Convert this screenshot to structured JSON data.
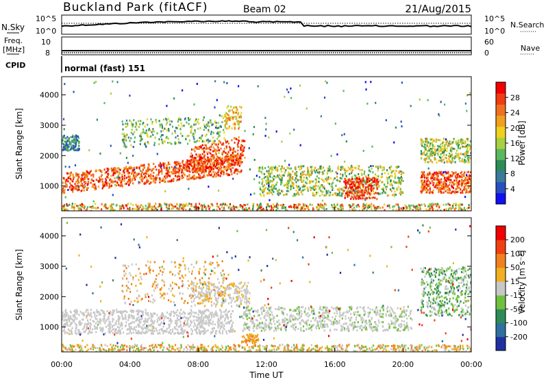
{
  "header": {
    "station": "Buckland Park (fitACF)",
    "beam": "Beam 02",
    "date": "21/Aug/2015"
  },
  "summary": {
    "nsky_label": "N.Sky",
    "nsky_ticks": [
      "10^5",
      "10^0"
    ],
    "nsearch_label": "N.Search",
    "freq_label_1": "Freq.",
    "freq_label_2": "[MHz]",
    "freq_ticks": [
      "10",
      "8"
    ],
    "nave_label": "Nave",
    "nave_ticks": [
      "60",
      "0"
    ],
    "cpid_label": "CPID",
    "cpid_value": "normal (fast) 151"
  },
  "chart_data": [
    {
      "type": "heatmap",
      "quantity": "Power",
      "ylabel": "Slant Range [km]",
      "yticks": [
        1000,
        2000,
        3000,
        4000
      ],
      "ylim": [
        180,
        4600
      ],
      "xlim_hours": [
        0,
        24
      ],
      "colorbar_label": "Power [dB]",
      "colorbar_ticks": [
        "4",
        "8",
        "12",
        "16",
        "20",
        "24",
        "28"
      ],
      "colorbar_colors": [
        "#1010f0",
        "#2850c0",
        "#3a7a9a",
        "#2e8b57",
        "#5cb85c",
        "#a8d040",
        "#f0d020",
        "#f0a020",
        "#f07020",
        "#f03c10",
        "#f00000"
      ]
    },
    {
      "type": "heatmap",
      "quantity": "Velocity",
      "ylabel": "Slant Range [km]",
      "yticks": [
        1000,
        2000,
        3000,
        4000
      ],
      "ylim": [
        180,
        4600
      ],
      "xlim_hours": [
        0,
        24
      ],
      "xlabel": "Time UT",
      "xticks": [
        "00:00",
        "04:00",
        "08:00",
        "12:00",
        "16:00",
        "20:00",
        "00:00"
      ],
      "colorbar_label": "Velocity [m s⁻¹]",
      "colorbar_ticks": [
        "200",
        "100",
        "50",
        "15",
        "-15",
        "-50",
        "-100",
        "-200"
      ],
      "colorbar_colors": [
        "#2030a0",
        "#3070a0",
        "#2e8b57",
        "#70c040",
        "#c8c8c8",
        "#f0b020",
        "#f08020",
        "#f04010",
        "#f00000"
      ]
    }
  ]
}
